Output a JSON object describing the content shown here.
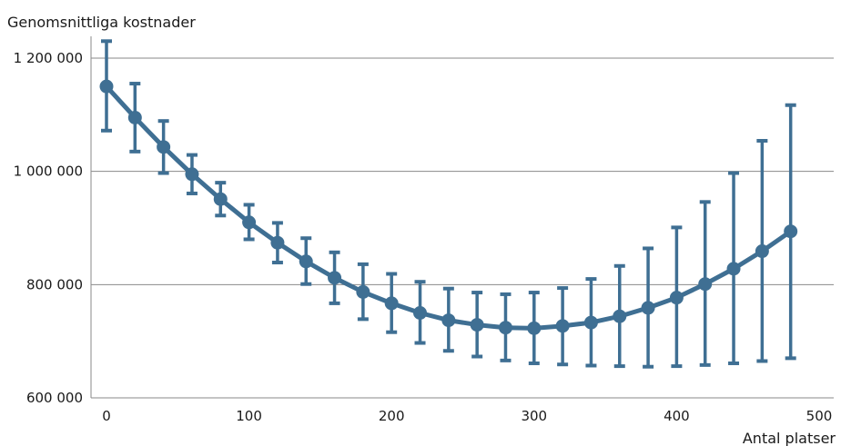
{
  "chart_data": {
    "type": "line",
    "title": "",
    "ylabel": "Genomsnittliga kostnader",
    "xlabel": "Antal platser",
    "xlim": [
      0,
      500
    ],
    "ylim": [
      600000,
      1200000
    ],
    "x_ticks": [
      0,
      100,
      200,
      300,
      400,
      500
    ],
    "x_tick_labels": [
      "0",
      "100",
      "200",
      "300",
      "400",
      "500"
    ],
    "y_ticks": [
      600000,
      800000,
      1000000,
      1200000
    ],
    "y_tick_labels": [
      "600 000",
      "800 000",
      "1 000 000",
      "1 200 000"
    ],
    "grid": "horizontal",
    "legend": "none",
    "series_color": "#3f6f93",
    "series": [
      {
        "x": [
          0,
          20,
          40,
          60,
          80,
          100,
          120,
          140,
          160,
          180,
          200,
          220,
          240,
          260,
          280,
          300,
          320,
          340,
          360,
          380,
          400,
          420,
          440,
          460,
          480
        ],
        "values": [
          1150000,
          1095000,
          1043000,
          995000,
          951000,
          910000,
          874000,
          841000,
          812000,
          787000,
          767000,
          750000,
          737000,
          729000,
          724000,
          723000,
          727000,
          733000,
          744000,
          759000,
          777000,
          801000,
          828000,
          859000,
          894000
        ],
        "lower": [
          1072000,
          1035000,
          997000,
          961000,
          922000,
          880000,
          839000,
          801000,
          767000,
          739000,
          716000,
          697000,
          683000,
          673000,
          666000,
          661000,
          659000,
          657000,
          656000,
          655000,
          656000,
          658000,
          661000,
          665000,
          670000
        ],
        "upper": [
          1230000,
          1155000,
          1089000,
          1029000,
          980000,
          941000,
          909000,
          882000,
          857000,
          836000,
          819000,
          805000,
          793000,
          786000,
          783000,
          786000,
          794000,
          810000,
          833000,
          864000,
          901000,
          946000,
          997000,
          1054000,
          1117000
        ]
      }
    ]
  }
}
